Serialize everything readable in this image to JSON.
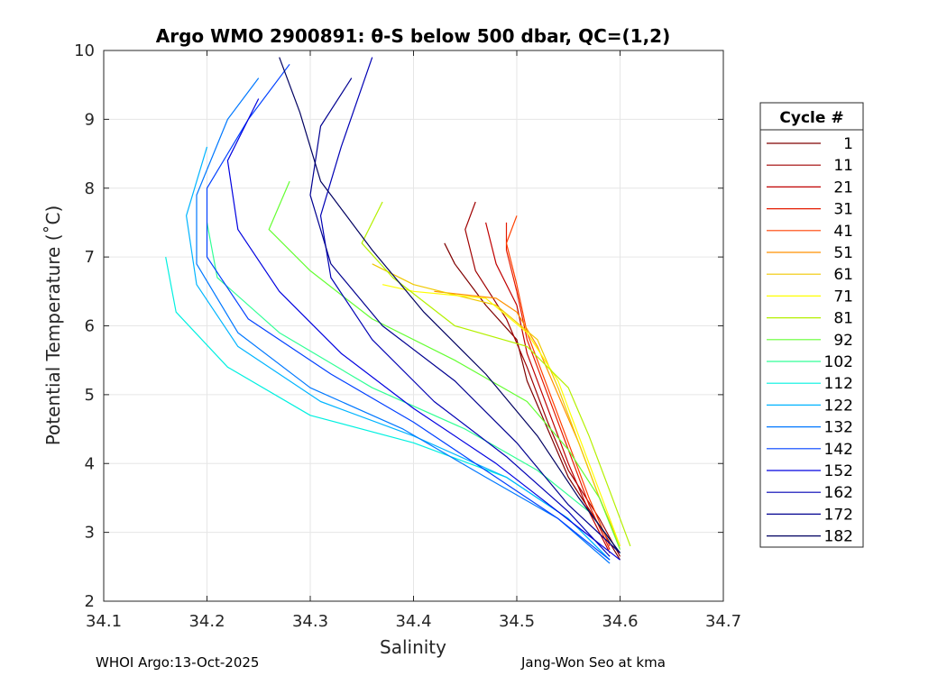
{
  "chart_data": {
    "type": "line",
    "title": "Argo WMO 2900891: θ-S below 500 dbar,  QC=(1,2)",
    "xlabel": "Salinity",
    "ylabel": "Potential Temperature (˚C)",
    "xlim": [
      34.1,
      34.7
    ],
    "ylim": [
      2,
      10
    ],
    "xticks": [
      "34.1",
      "34.2",
      "34.3",
      "34.4",
      "34.5",
      "34.6",
      "34.7"
    ],
    "yticks": [
      "2",
      "3",
      "4",
      "5",
      "6",
      "7",
      "8",
      "9",
      "10"
    ],
    "grid": true,
    "legend": {
      "title": "Cycle #",
      "placement": "outside-right",
      "entries": [
        {
          "label": "1",
          "color": "#7f0000"
        },
        {
          "label": "11",
          "color": "#9f0000"
        },
        {
          "label": "21",
          "color": "#c00000"
        },
        {
          "label": "31",
          "color": "#e41a00"
        },
        {
          "label": "41",
          "color": "#ff4000"
        },
        {
          "label": "51",
          "color": "#ff9000"
        },
        {
          "label": "61",
          "color": "#f0c800"
        },
        {
          "label": "71",
          "color": "#ffff00"
        },
        {
          "label": "81",
          "color": "#b4f000"
        },
        {
          "label": "92",
          "color": "#64ff32"
        },
        {
          "label": "102",
          "color": "#32ff96"
        },
        {
          "label": "112",
          "color": "#00f0e0"
        },
        {
          "label": "122",
          "color": "#00b4ff"
        },
        {
          "label": "132",
          "color": "#0078ff"
        },
        {
          "label": "142",
          "color": "#0040ff"
        },
        {
          "label": "152",
          "color": "#0000e0"
        },
        {
          "label": "162",
          "color": "#0000b4"
        },
        {
          "label": "172",
          "color": "#000090"
        },
        {
          "label": "182",
          "color": "#000060"
        }
      ]
    },
    "series": [
      {
        "name": "1",
        "color": "#7f0000",
        "points": [
          [
            34.6,
            2.6
          ],
          [
            34.58,
            3.1
          ],
          [
            34.55,
            3.8
          ],
          [
            34.53,
            4.5
          ],
          [
            34.51,
            5.2
          ],
          [
            34.5,
            5.8
          ],
          [
            34.47,
            6.3
          ],
          [
            34.44,
            6.9
          ],
          [
            34.43,
            7.2
          ]
        ]
      },
      {
        "name": "11",
        "color": "#9f0000",
        "points": [
          [
            34.6,
            2.65
          ],
          [
            34.58,
            3.2
          ],
          [
            34.55,
            3.9
          ],
          [
            34.53,
            4.6
          ],
          [
            34.51,
            5.4
          ],
          [
            34.49,
            6.1
          ],
          [
            34.46,
            6.8
          ],
          [
            34.45,
            7.4
          ],
          [
            34.46,
            7.8
          ]
        ]
      },
      {
        "name": "21",
        "color": "#c00000",
        "points": [
          [
            34.59,
            2.7
          ],
          [
            34.57,
            3.3
          ],
          [
            34.55,
            4.0
          ],
          [
            34.53,
            4.8
          ],
          [
            34.51,
            5.6
          ],
          [
            34.5,
            6.3
          ],
          [
            34.48,
            6.9
          ],
          [
            34.47,
            7.5
          ]
        ]
      },
      {
        "name": "31",
        "color": "#e41a00",
        "points": [
          [
            34.59,
            2.75
          ],
          [
            34.57,
            3.4
          ],
          [
            34.55,
            4.2
          ],
          [
            34.53,
            5.0
          ],
          [
            34.51,
            5.8
          ],
          [
            34.5,
            6.5
          ],
          [
            34.49,
            7.1
          ],
          [
            34.49,
            7.5
          ]
        ]
      },
      {
        "name": "41",
        "color": "#ff4000",
        "points": [
          [
            34.59,
            2.8
          ],
          [
            34.57,
            3.5
          ],
          [
            34.55,
            4.3
          ],
          [
            34.53,
            5.1
          ],
          [
            34.51,
            5.9
          ],
          [
            34.5,
            6.6
          ],
          [
            34.49,
            7.2
          ],
          [
            34.5,
            7.6
          ]
        ]
      },
      {
        "name": "51",
        "color": "#ff9000",
        "points": [
          [
            34.6,
            2.8
          ],
          [
            34.58,
            3.5
          ],
          [
            34.56,
            4.3
          ],
          [
            34.54,
            5.0
          ],
          [
            34.52,
            5.7
          ],
          [
            34.5,
            6.2
          ],
          [
            34.48,
            6.4
          ],
          [
            34.42,
            6.5
          ]
        ]
      },
      {
        "name": "61",
        "color": "#f0c800",
        "points": [
          [
            34.6,
            2.8
          ],
          [
            34.58,
            3.5
          ],
          [
            34.56,
            4.3
          ],
          [
            34.54,
            5.1
          ],
          [
            34.52,
            5.8
          ],
          [
            34.48,
            6.3
          ],
          [
            34.4,
            6.6
          ],
          [
            34.36,
            6.9
          ]
        ]
      },
      {
        "name": "71",
        "color": "#ffff00",
        "points": [
          [
            34.6,
            2.8
          ],
          [
            34.58,
            3.6
          ],
          [
            34.56,
            4.4
          ],
          [
            34.54,
            5.2
          ],
          [
            34.51,
            5.9
          ],
          [
            34.47,
            6.4
          ],
          [
            34.4,
            6.5
          ],
          [
            34.37,
            6.6
          ]
        ]
      },
      {
        "name": "81",
        "color": "#b4f000",
        "points": [
          [
            34.61,
            2.8
          ],
          [
            34.59,
            3.6
          ],
          [
            34.57,
            4.4
          ],
          [
            34.55,
            5.1
          ],
          [
            34.51,
            5.7
          ],
          [
            34.44,
            6.0
          ],
          [
            34.38,
            6.7
          ],
          [
            34.35,
            7.2
          ],
          [
            34.37,
            7.8
          ]
        ]
      },
      {
        "name": "92",
        "color": "#64ff32",
        "points": [
          [
            34.6,
            2.75
          ],
          [
            34.58,
            3.5
          ],
          [
            34.55,
            4.2
          ],
          [
            34.51,
            4.9
          ],
          [
            34.44,
            5.5
          ],
          [
            34.36,
            6.1
          ],
          [
            34.3,
            6.8
          ],
          [
            34.26,
            7.4
          ],
          [
            34.28,
            8.1
          ]
        ]
      },
      {
        "name": "102",
        "color": "#32ff96",
        "points": [
          [
            34.6,
            2.7
          ],
          [
            34.57,
            3.3
          ],
          [
            34.52,
            3.9
          ],
          [
            34.45,
            4.5
          ],
          [
            34.36,
            5.1
          ],
          [
            34.27,
            5.9
          ],
          [
            34.21,
            6.7
          ],
          [
            34.2,
            7.5
          ]
        ]
      },
      {
        "name": "112",
        "color": "#00f0e0",
        "points": [
          [
            34.59,
            2.6
          ],
          [
            34.55,
            3.2
          ],
          [
            34.49,
            3.8
          ],
          [
            34.4,
            4.3
          ],
          [
            34.3,
            4.7
          ],
          [
            34.22,
            5.4
          ],
          [
            34.17,
            6.2
          ],
          [
            34.16,
            7.0
          ]
        ]
      },
      {
        "name": "122",
        "color": "#00b4ff",
        "points": [
          [
            34.59,
            2.6
          ],
          [
            34.55,
            3.2
          ],
          [
            34.49,
            3.8
          ],
          [
            34.4,
            4.4
          ],
          [
            34.31,
            4.9
          ],
          [
            34.23,
            5.7
          ],
          [
            34.19,
            6.6
          ],
          [
            34.18,
            7.6
          ],
          [
            34.2,
            8.6
          ]
        ]
      },
      {
        "name": "132",
        "color": "#0078ff",
        "points": [
          [
            34.59,
            2.55
          ],
          [
            34.54,
            3.2
          ],
          [
            34.47,
            3.8
          ],
          [
            34.39,
            4.5
          ],
          [
            34.3,
            5.1
          ],
          [
            34.23,
            5.9
          ],
          [
            34.19,
            6.9
          ],
          [
            34.19,
            7.9
          ],
          [
            34.22,
            9.0
          ],
          [
            34.25,
            9.6
          ]
        ]
      },
      {
        "name": "142",
        "color": "#0040ff",
        "points": [
          [
            34.59,
            2.6
          ],
          [
            34.54,
            3.2
          ],
          [
            34.47,
            3.9
          ],
          [
            34.4,
            4.6
          ],
          [
            34.32,
            5.3
          ],
          [
            34.24,
            6.1
          ],
          [
            34.2,
            7.0
          ],
          [
            34.2,
            8.0
          ],
          [
            34.24,
            9.0
          ],
          [
            34.28,
            9.8
          ]
        ]
      },
      {
        "name": "152",
        "color": "#0000e0",
        "points": [
          [
            34.6,
            2.6
          ],
          [
            34.54,
            3.3
          ],
          [
            34.48,
            4.0
          ],
          [
            34.4,
            4.8
          ],
          [
            34.33,
            5.6
          ],
          [
            34.27,
            6.5
          ],
          [
            34.23,
            7.4
          ],
          [
            34.22,
            8.4
          ],
          [
            34.25,
            9.3
          ]
        ]
      },
      {
        "name": "162",
        "color": "#0000b4",
        "points": [
          [
            34.59,
            2.65
          ],
          [
            34.55,
            3.3
          ],
          [
            34.49,
            4.1
          ],
          [
            34.42,
            4.9
          ],
          [
            34.36,
            5.8
          ],
          [
            34.32,
            6.7
          ],
          [
            34.31,
            7.6
          ],
          [
            34.33,
            8.6
          ],
          [
            34.36,
            9.9
          ]
        ]
      },
      {
        "name": "172",
        "color": "#000090",
        "points": [
          [
            34.6,
            2.7
          ],
          [
            34.55,
            3.4
          ],
          [
            34.5,
            4.3
          ],
          [
            34.44,
            5.2
          ],
          [
            34.37,
            6.0
          ],
          [
            34.32,
            6.9
          ],
          [
            34.3,
            7.9
          ],
          [
            34.31,
            8.9
          ],
          [
            34.34,
            9.6
          ]
        ]
      },
      {
        "name": "182",
        "color": "#000060",
        "points": [
          [
            34.6,
            2.7
          ],
          [
            34.56,
            3.5
          ],
          [
            34.52,
            4.4
          ],
          [
            34.47,
            5.3
          ],
          [
            34.41,
            6.2
          ],
          [
            34.36,
            7.1
          ],
          [
            34.31,
            8.1
          ],
          [
            34.29,
            9.1
          ],
          [
            34.27,
            9.9
          ]
        ]
      }
    ]
  },
  "footer": {
    "left": "WHOI Argo:13-Oct-2025",
    "right": "Jang-Won Seo at kma"
  }
}
